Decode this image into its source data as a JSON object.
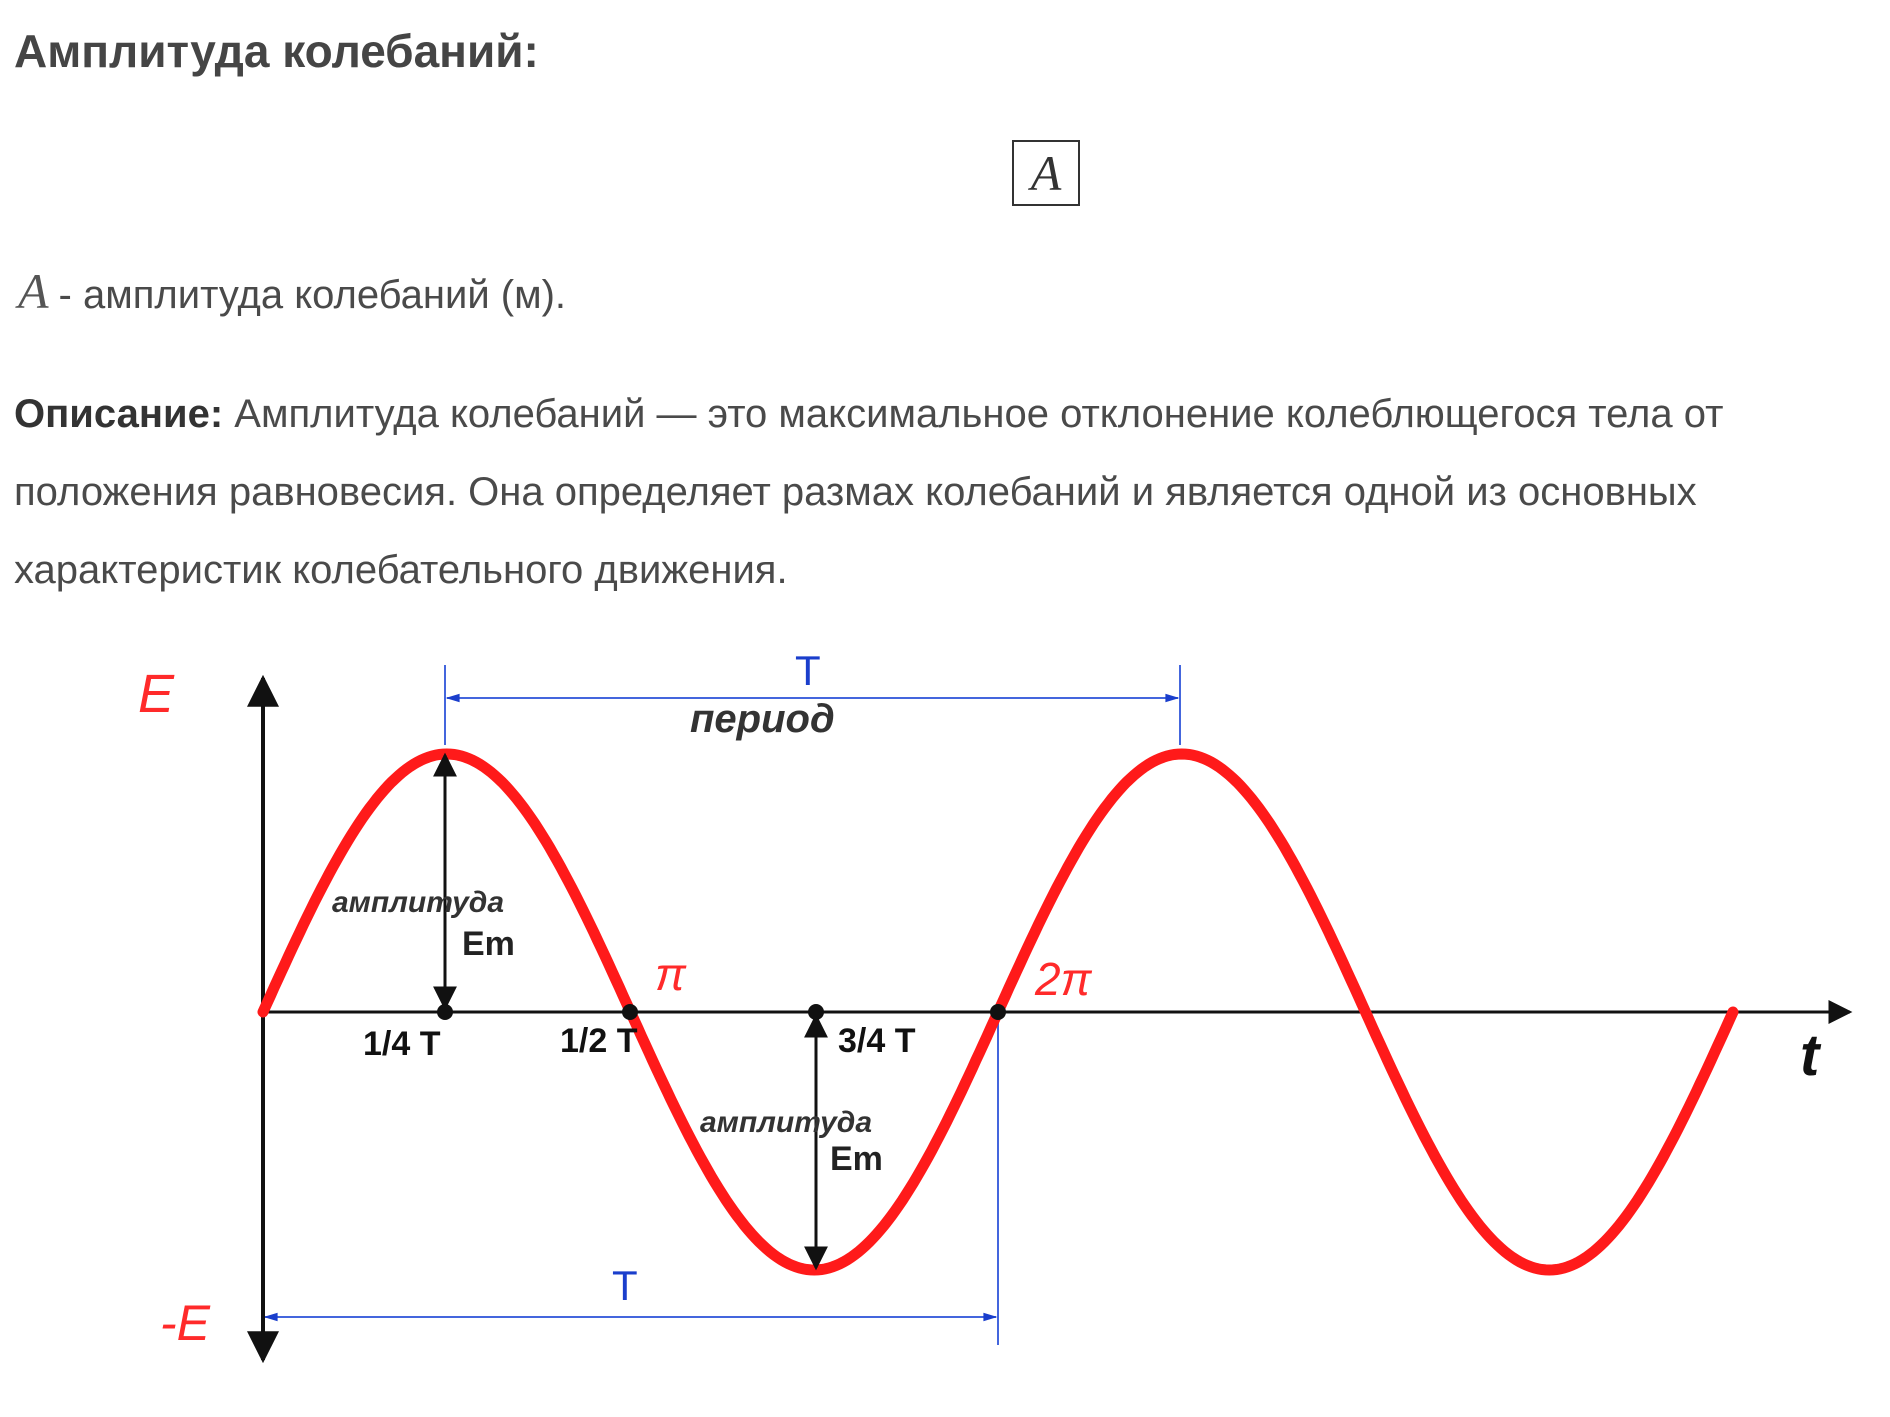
{
  "heading": "Амплитуда колебаний:",
  "formula": "A",
  "definition": {
    "symbol": "A",
    "text": "- амплитуда колебаний (м)."
  },
  "description": {
    "label": "Описание:",
    "text": "Амплитуда колебаний — это максимальное отклонение колеблющегося тела от положения равновесия. Она определяет размах колебаний и является одной из основных характеристик колебательного движения."
  },
  "diagram": {
    "y_axis_label": "E",
    "y_axis_neg_label": "-E",
    "x_axis_label": "t",
    "period_symbol_top": "T",
    "period_word": "период",
    "period_symbol_bottom": "T",
    "amplitude_word_1": "амплитуда",
    "amplitude_sym_1": "Em",
    "amplitude_word_2": "амплитуда",
    "amplitude_sym_2": "Em",
    "tick_quarter": "1/4 T",
    "tick_half": "1/2 T",
    "tick_three_quarter": "3/4 T",
    "pi_label": "π",
    "two_pi_label": "2π",
    "colors": {
      "wave": "#ff1a1a",
      "axis": "#111111",
      "guides": "#1a3ecc",
      "axis_label": "#ff2a2a"
    }
  }
}
